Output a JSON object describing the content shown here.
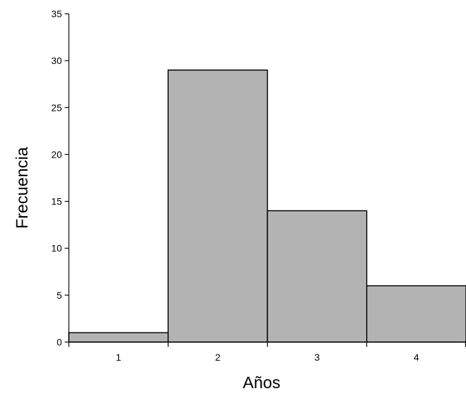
{
  "chart_data": {
    "type": "bar",
    "title": "",
    "xlabel": "Años",
    "ylabel": "Frecuencia",
    "categories": [
      "1",
      "2",
      "3",
      "4"
    ],
    "values": [
      1,
      29,
      14,
      6
    ],
    "ylim": [
      0,
      35
    ],
    "yticks": [
      "0",
      "5",
      "10",
      "15",
      "20",
      "25",
      "30",
      "35"
    ],
    "grid": false,
    "legend": "none",
    "bar_color": "#b3b3b3",
    "edge_color": "#000000"
  }
}
